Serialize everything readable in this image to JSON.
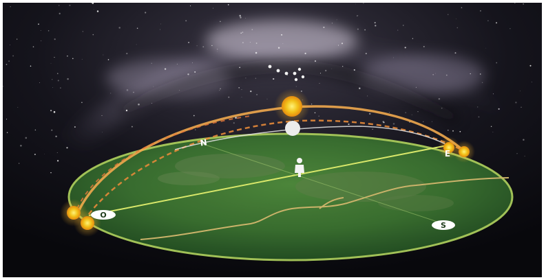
{
  "diagram": {
    "compass": {
      "north": "N",
      "east": "E",
      "south": "S",
      "west": "O"
    },
    "colors": {
      "sky_dark": "#0c0c12",
      "milky_way": "#b9b2c6",
      "ground_disk": "#3f7a34",
      "ground_rim": "#a8c95a",
      "ns_line": "#d9e86a",
      "sun": "#f2c21a",
      "sun_path": "#e7a24a",
      "moon": "#e8e8e8",
      "trail_white": "#f0f0f0",
      "river": "#cbb36a"
    },
    "icons": [
      "sun-icon",
      "moon-icon",
      "person-icon"
    ]
  }
}
